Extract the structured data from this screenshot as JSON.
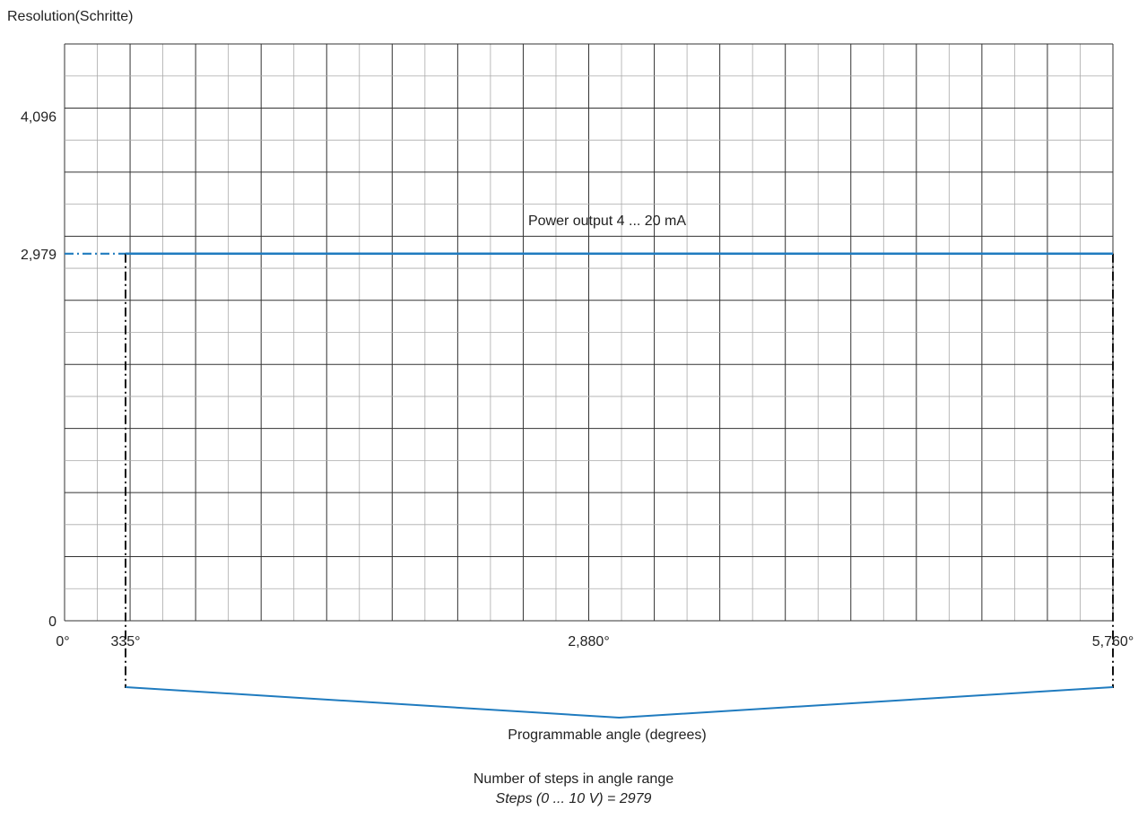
{
  "chart_data": {
    "type": "line",
    "ylabel": "Resolution(Schritte)",
    "xlabel": "Programmable angle (degrees)",
    "x_range": [
      0,
      5760
    ],
    "y_range": [
      0,
      4096
    ],
    "x_ticks": [
      {
        "value": 0,
        "label": "0°"
      },
      {
        "value": 335,
        "label": "335°"
      },
      {
        "value": 2880,
        "label": "2,880°"
      },
      {
        "value": 5760,
        "label": "5,760°"
      }
    ],
    "y_ticks": [
      {
        "value": 0,
        "label": "0"
      },
      {
        "value": 2979,
        "label": "2,979"
      },
      {
        "value": 4096,
        "label": "4,096"
      }
    ],
    "series": [
      {
        "name": "Power output 4 ... 20 mA",
        "x": [
          335,
          5760
        ],
        "y": [
          2979,
          2979
        ],
        "color": "#1f7bbf"
      }
    ],
    "markers": {
      "x_start": 335,
      "x_end": 5760,
      "y_level": 2979
    },
    "grid": true,
    "colors": {
      "series": "#1f7bbf",
      "grid_major": "#333333",
      "grid_minor": "#aaaaaa"
    }
  },
  "notes": {
    "line1": "Number of steps in angle range",
    "line2": "Steps (0 ... 10 V) = 2979"
  }
}
